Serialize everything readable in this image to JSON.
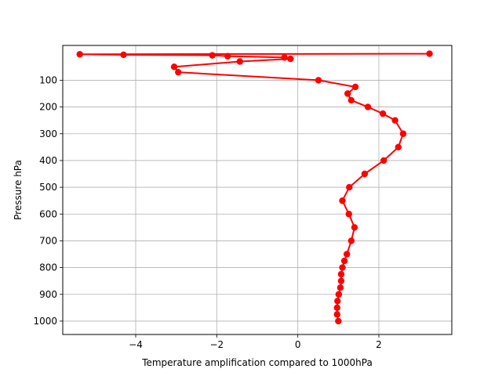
{
  "chart_data": {
    "type": "line",
    "title": "",
    "xlabel": "Temperature amplification compared to 1000hPa",
    "ylabel": "Pressure hPa",
    "xlim": [
      -5.8,
      3.8
    ],
    "ylim": [
      1050,
      -30
    ],
    "y_inverted": true,
    "grid": true,
    "xticks": [
      -4,
      -2,
      0,
      2
    ],
    "yticks": [
      100,
      200,
      300,
      400,
      500,
      600,
      700,
      800,
      900,
      1000
    ],
    "series": [
      {
        "color": "#ff0000",
        "marker": "circle",
        "points": [
          {
            "x": 1.0,
            "y": 1000
          },
          {
            "x": 0.97,
            "y": 975
          },
          {
            "x": 0.97,
            "y": 950
          },
          {
            "x": 0.98,
            "y": 925
          },
          {
            "x": 1.01,
            "y": 900
          },
          {
            "x": 1.05,
            "y": 875
          },
          {
            "x": 1.07,
            "y": 850
          },
          {
            "x": 1.07,
            "y": 825
          },
          {
            "x": 1.1,
            "y": 800
          },
          {
            "x": 1.15,
            "y": 775
          },
          {
            "x": 1.21,
            "y": 750
          },
          {
            "x": 1.32,
            "y": 700
          },
          {
            "x": 1.4,
            "y": 650
          },
          {
            "x": 1.26,
            "y": 600
          },
          {
            "x": 1.1,
            "y": 550
          },
          {
            "x": 1.27,
            "y": 500
          },
          {
            "x": 1.65,
            "y": 450
          },
          {
            "x": 2.12,
            "y": 400
          },
          {
            "x": 2.48,
            "y": 350
          },
          {
            "x": 2.6,
            "y": 300
          },
          {
            "x": 2.4,
            "y": 250
          },
          {
            "x": 2.1,
            "y": 225
          },
          {
            "x": 1.73,
            "y": 200
          },
          {
            "x": 1.32,
            "y": 175
          },
          {
            "x": 1.23,
            "y": 150
          },
          {
            "x": 1.42,
            "y": 125
          },
          {
            "x": 0.51,
            "y": 100
          },
          {
            "x": -2.95,
            "y": 70
          },
          {
            "x": -3.05,
            "y": 50
          },
          {
            "x": -1.43,
            "y": 30
          },
          {
            "x": -0.18,
            "y": 20
          },
          {
            "x": -0.33,
            "y": 15
          },
          {
            "x": -1.73,
            "y": 10
          },
          {
            "x": -2.11,
            "y": 7
          },
          {
            "x": -4.3,
            "y": 5
          },
          {
            "x": -5.38,
            "y": 3
          },
          {
            "x": 3.25,
            "y": 1
          }
        ]
      }
    ]
  }
}
